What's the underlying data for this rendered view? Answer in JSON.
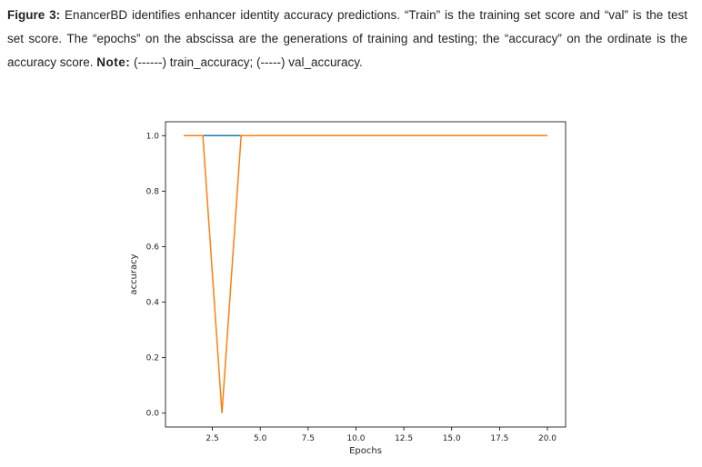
{
  "caption": {
    "figure_label": "Figure 3:",
    "text_part1": " EnancerBD identifies enhancer identity accuracy predictions. “Train” is the training set score and “val” is the test set score. The “epochs” on the abscissa are the generations of training and testing; the “accuracy” on the ordinate is the accuracy score. ",
    "note_label": "Note:",
    "text_part2": " (------) train_accuracy; (-----) val_accuracy."
  },
  "chart_data": {
    "type": "line",
    "xlabel": "Epochs",
    "ylabel": "accuracy",
    "xlim": [
      0.05,
      20.95
    ],
    "ylim": [
      -0.05,
      1.05
    ],
    "xticks": [
      2.5,
      5.0,
      7.5,
      10.0,
      12.5,
      15.0,
      17.5,
      20.0
    ],
    "xtick_labels": [
      "2.5",
      "5.0",
      "7.5",
      "10.0",
      "12.5",
      "15.0",
      "17.5",
      "20.0"
    ],
    "yticks": [
      0.0,
      0.2,
      0.4,
      0.6,
      0.8,
      1.0
    ],
    "ytick_labels": [
      "0.0",
      "0.2",
      "0.4",
      "0.6",
      "0.8",
      "1.0"
    ],
    "grid": false,
    "series": [
      {
        "color": "#1f77b4",
        "x": [
          1,
          2,
          3,
          4,
          5,
          6,
          7,
          8,
          9,
          10,
          11,
          12,
          13,
          14,
          15,
          16,
          17,
          18,
          19,
          20
        ],
        "y": [
          1,
          1,
          1,
          1,
          1,
          1,
          1,
          1,
          1,
          1,
          1,
          1,
          1,
          1,
          1,
          1,
          1,
          1,
          1,
          1
        ]
      },
      {
        "color": "#ff7f0e",
        "x": [
          1,
          2,
          3,
          4,
          5,
          6,
          7,
          8,
          9,
          10,
          11,
          12,
          13,
          14,
          15,
          16,
          17,
          18,
          19,
          20
        ],
        "y": [
          1,
          1,
          0,
          1,
          1,
          1,
          1,
          1,
          1,
          1,
          1,
          1,
          1,
          1,
          1,
          1,
          1,
          1,
          1,
          1
        ]
      }
    ]
  }
}
